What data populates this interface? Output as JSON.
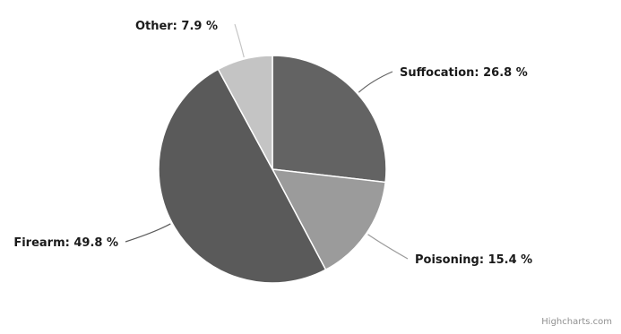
{
  "chart_data": {
    "type": "pie",
    "start_angle_deg": 0,
    "direction": "clockwise",
    "slices": [
      {
        "name": "Suffocation",
        "value": 26.8,
        "color": "#636363",
        "label": "Suffocation: 26.8 %"
      },
      {
        "name": "Poisoning",
        "value": 15.4,
        "color": "#9b9b9b",
        "label": "Poisoning: 15.4 %"
      },
      {
        "name": "Firearm",
        "value": 49.8,
        "color": "#5a5a5a",
        "label": "Firearm: 49.8 %"
      },
      {
        "name": "Other",
        "value": 7.9,
        "color": "#c4c4c4",
        "label": "Other: 7.9 %"
      }
    ]
  },
  "credits": "Highcharts.com"
}
